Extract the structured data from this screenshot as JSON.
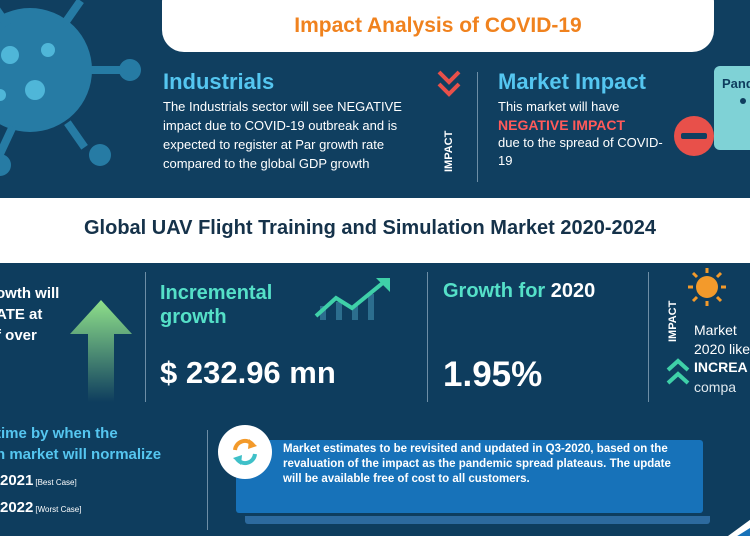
{
  "header": {
    "title": "Impact Analysis of COVID-19"
  },
  "industrials": {
    "title": "Industrials",
    "body": "The Industrials sector will see NEGATIVE impact due to COVID-19 outbreak and is expected to register at Par growth rate compared to the global GDP growth"
  },
  "impact_label": "IMPACT",
  "market_impact": {
    "title": "Market Impact",
    "line1": "This market will have",
    "negative": "NEGATIVE IMPACT",
    "line2": "due to the spread of COVID-19"
  },
  "pandemic_tab": {
    "label": "Pand"
  },
  "banner": {
    "title": "Global UAV Flight Training and Simulation Market 2020-2024"
  },
  "growth_teaser": {
    "line1": "owth will",
    "line2": "ATE at",
    "line3": "f over"
  },
  "incremental": {
    "title_line1": "Incremental",
    "title_line2": "growth",
    "value": "$ 232.96 mn"
  },
  "growth_2020": {
    "title": "Growth for",
    "year": "2020",
    "value": "1.95%"
  },
  "right_impact": {
    "label": "IMPACT",
    "line1": "Market",
    "line2": "2020 like",
    "strong": "INCREA",
    "line3": "compa"
  },
  "normalize": {
    "line1": "time by when the",
    "line2": "n market will normalize",
    "best_year": "2021",
    "best_tag": "[Best Case]",
    "worst_year": "2022",
    "worst_tag": "[Worst Case]"
  },
  "note": {
    "text": "Market estimates to be revisited and updated in Q3-2020, based on the revaluation of the impact as the pandemic spread plateaus. The update will be available free of cost to all customers."
  },
  "colors": {
    "background": "#0e3d5e",
    "accent_orange": "#f0821e",
    "accent_blue": "#55c6f0",
    "accent_teal": "#55e0c8",
    "negative_red": "#ff5a5a",
    "note_blue": "#1772b9"
  }
}
